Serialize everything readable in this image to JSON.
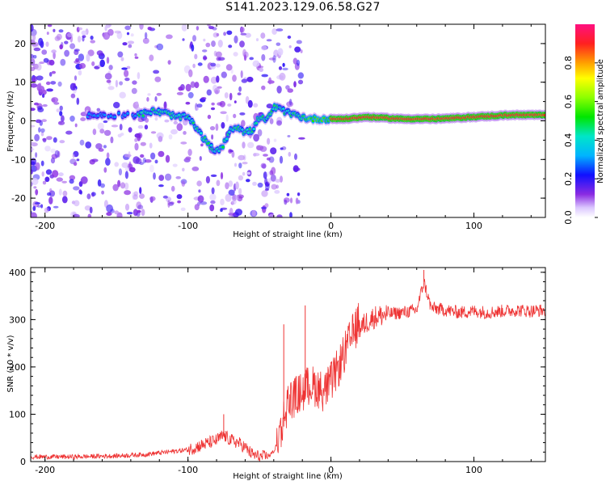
{
  "title": "S141.2023.129.06.58.G27",
  "chart_data": [
    {
      "type": "heatmap",
      "title": "S141.2023.129.06.58.G27",
      "xlabel": "Height of straight line (km)",
      "ylabel": "Frequency (Hz)",
      "xlim": [
        -210,
        150
      ],
      "ylim": [
        -25,
        25
      ],
      "xticks": [
        -200,
        -100,
        0,
        100
      ],
      "yticks": [
        -20,
        -10,
        0,
        10,
        20
      ],
      "colorbar": {
        "label": "Normalized spectral amplitude",
        "range": [
          0.0,
          1.0
        ],
        "ticks": [
          "0.0",
          "0.2",
          "0.4",
          "0.6",
          "0.8"
        ]
      },
      "ridge": {
        "x": [
          -135,
          -125,
          -115,
          -108,
          -100,
          -95,
          -90,
          -85,
          -80,
          -75,
          -70,
          -65,
          -60,
          -55,
          -50,
          -45,
          -40,
          -35,
          -30,
          -25,
          -20,
          -15,
          -10,
          -5,
          0,
          10,
          25,
          50,
          75,
          100,
          125,
          150
        ],
        "freq": [
          1.5,
          2.5,
          2.0,
          1.0,
          1.0,
          -1.5,
          -4.0,
          -6.5,
          -8.0,
          -6.0,
          -2.0,
          -1.5,
          -3.0,
          -2.5,
          1.0,
          0.0,
          3.5,
          3.0,
          2.0,
          1.5,
          1.0,
          0.5,
          0.5,
          0.5,
          0.5,
          0.5,
          1.0,
          0.5,
          0.5,
          1.0,
          1.5,
          1.5
        ]
      }
    },
    {
      "type": "line",
      "xlabel": "Height of straight line (km)",
      "ylabel": "SNR (10 * v/v)",
      "xlim": [
        -210,
        150
      ],
      "ylim": [
        0,
        410
      ],
      "xticks": [
        -200,
        -100,
        0,
        100
      ],
      "yticks": [
        0,
        100,
        200,
        300,
        400
      ],
      "series": [
        {
          "name": "SNR",
          "color": "#ee3333",
          "x": [
            -210,
            -180,
            -150,
            -130,
            -115,
            -100,
            -90,
            -80,
            -75,
            -70,
            -65,
            -60,
            -55,
            -50,
            -45,
            -40,
            -35,
            -30,
            -25,
            -20,
            -15,
            -10,
            -5,
            0,
            5,
            10,
            15,
            20,
            25,
            30,
            40,
            50,
            60,
            65,
            70,
            80,
            90,
            100,
            110,
            120,
            130,
            140,
            150
          ],
          "y": [
            10,
            10,
            12,
            15,
            20,
            25,
            35,
            45,
            55,
            45,
            40,
            30,
            15,
            10,
            10,
            20,
            50,
            110,
            120,
            130,
            145,
            140,
            130,
            150,
            180,
            215,
            250,
            280,
            295,
            305,
            312,
            315,
            320,
            380,
            325,
            320,
            315,
            318,
            315,
            318,
            320,
            318,
            320
          ],
          "spikes": [
            {
              "x": 65,
              "y": 405
            },
            {
              "x": -33,
              "y": 290
            },
            {
              "x": -18,
              "y": 330
            },
            {
              "x": -75,
              "y": 100
            }
          ]
        }
      ]
    }
  ]
}
